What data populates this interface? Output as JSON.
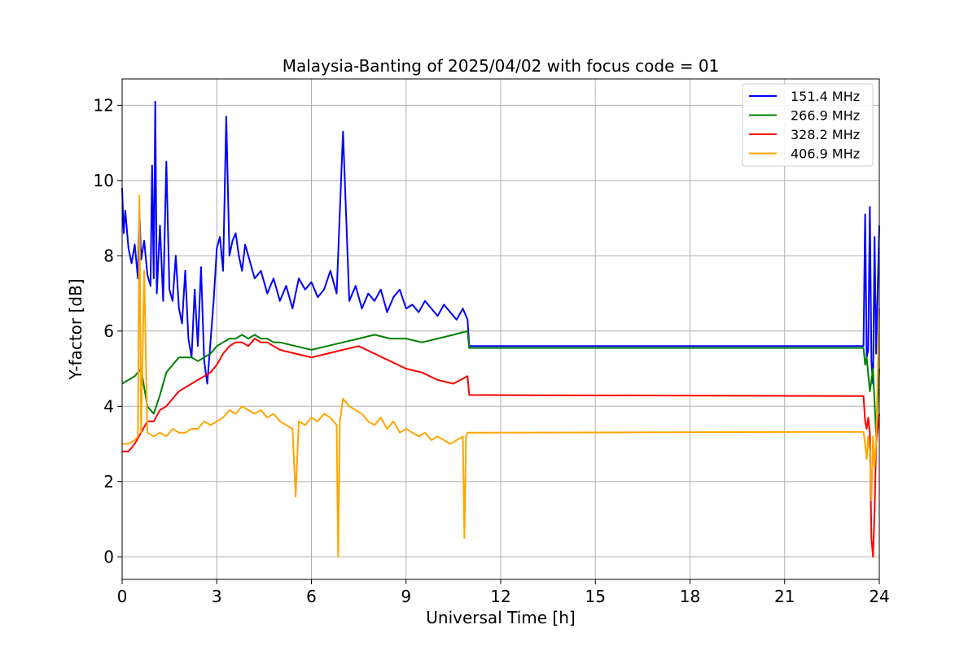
{
  "chart_data": {
    "type": "line",
    "title": "Malaysia-Banting of 2025/04/02 with focus code = 01",
    "xlabel": "Universal Time [h]",
    "ylabel": "Y-factor [dB]",
    "xlim": [
      0,
      24
    ],
    "ylim": [
      -0.6,
      12.7
    ],
    "xticks": [
      "0",
      "3",
      "6",
      "9",
      "12",
      "15",
      "18",
      "21",
      "24"
    ],
    "yticks": [
      "0",
      "2",
      "4",
      "6",
      "8",
      "10",
      "12"
    ],
    "grid": true,
    "legend_position": "top-right",
    "series": [
      {
        "name": "151.4 MHz",
        "color": "#0000ff",
        "x": [
          0,
          0.05,
          0.1,
          0.2,
          0.3,
          0.4,
          0.5,
          0.55,
          0.6,
          0.7,
          0.8,
          0.9,
          0.95,
          1.0,
          1.05,
          1.1,
          1.2,
          1.3,
          1.4,
          1.5,
          1.6,
          1.7,
          1.8,
          1.9,
          2.0,
          2.1,
          2.2,
          2.3,
          2.4,
          2.5,
          2.6,
          2.7,
          2.8,
          2.9,
          3.0,
          3.1,
          3.2,
          3.3,
          3.4,
          3.5,
          3.6,
          3.7,
          3.8,
          3.9,
          4.0,
          4.2,
          4.4,
          4.6,
          4.8,
          5.0,
          5.2,
          5.4,
          5.6,
          5.8,
          6.0,
          6.2,
          6.4,
          6.6,
          6.8,
          7.0,
          7.2,
          7.4,
          7.6,
          7.8,
          8.0,
          8.2,
          8.4,
          8.6,
          8.8,
          9.0,
          9.2,
          9.4,
          9.6,
          9.8,
          10.0,
          10.2,
          10.4,
          10.6,
          10.8,
          10.95,
          11.0,
          23.5,
          23.55,
          23.6,
          23.65,
          23.7,
          23.75,
          23.8,
          23.85,
          23.9,
          24.0
        ],
        "y": [
          9.8,
          8.6,
          9.2,
          8.2,
          7.8,
          8.3,
          7.4,
          9.2,
          7.9,
          8.4,
          7.5,
          7.2,
          10.4,
          7.4,
          12.1,
          7.0,
          8.8,
          6.8,
          10.5,
          7.1,
          6.8,
          8.0,
          6.6,
          6.2,
          7.6,
          5.8,
          5.3,
          7.1,
          5.6,
          7.7,
          5.2,
          4.6,
          5.7,
          6.8,
          8.2,
          8.5,
          7.6,
          11.7,
          8.0,
          8.4,
          8.6,
          8.0,
          7.6,
          8.3,
          8.0,
          7.4,
          7.6,
          7.0,
          7.4,
          6.8,
          7.2,
          6.6,
          7.4,
          7.1,
          7.3,
          6.9,
          7.1,
          7.6,
          7.0,
          11.3,
          6.8,
          7.2,
          6.6,
          7.0,
          6.8,
          7.1,
          6.5,
          6.9,
          7.1,
          6.6,
          6.7,
          6.5,
          6.8,
          6.6,
          6.4,
          6.7,
          6.5,
          6.3,
          6.6,
          6.3,
          5.6,
          5.6,
          9.1,
          5.3,
          5.5,
          9.3,
          5.2,
          4.6,
          8.5,
          5.4,
          8.8
        ]
      },
      {
        "name": "266.9 MHz",
        "color": "#008000",
        "x": [
          0,
          0.2,
          0.4,
          0.6,
          0.7,
          0.8,
          1.0,
          1.2,
          1.4,
          1.6,
          1.8,
          2.0,
          2.2,
          2.4,
          2.6,
          2.8,
          3.0,
          3.2,
          3.4,
          3.6,
          3.8,
          4.0,
          4.2,
          4.4,
          4.6,
          4.8,
          5.0,
          5.5,
          6.0,
          6.5,
          7.0,
          7.5,
          8.0,
          8.5,
          9.0,
          9.5,
          10.0,
          10.5,
          10.95,
          11.0,
          23.5,
          23.55,
          23.6,
          23.7,
          23.8,
          23.9,
          24.0
        ],
        "y": [
          4.6,
          4.7,
          4.8,
          5.0,
          4.5,
          4.0,
          3.8,
          4.3,
          4.9,
          5.1,
          5.3,
          5.3,
          5.3,
          5.2,
          5.3,
          5.4,
          5.6,
          5.7,
          5.8,
          5.8,
          5.9,
          5.8,
          5.9,
          5.8,
          5.8,
          5.7,
          5.7,
          5.6,
          5.5,
          5.6,
          5.7,
          5.8,
          5.9,
          5.8,
          5.8,
          5.7,
          5.8,
          5.9,
          6.0,
          5.55,
          5.55,
          5.1,
          5.3,
          4.4,
          5.0,
          3.2,
          5.0
        ]
      },
      {
        "name": "328.2 MHz",
        "color": "#ff0000",
        "x": [
          0,
          0.2,
          0.4,
          0.6,
          0.8,
          1.0,
          1.2,
          1.4,
          1.6,
          1.8,
          2.0,
          2.2,
          2.4,
          2.6,
          2.8,
          3.0,
          3.2,
          3.4,
          3.6,
          3.8,
          4.0,
          4.2,
          4.4,
          4.6,
          4.8,
          5.0,
          5.5,
          6.0,
          6.5,
          7.0,
          7.5,
          8.0,
          8.5,
          9.0,
          9.5,
          10.0,
          10.5,
          10.95,
          11.0,
          23.5,
          23.55,
          23.6,
          23.65,
          23.7,
          23.75,
          23.8,
          23.85,
          23.9,
          24.0
        ],
        "y": [
          2.8,
          2.8,
          3.0,
          3.3,
          3.6,
          3.6,
          3.9,
          4.0,
          4.2,
          4.4,
          4.5,
          4.6,
          4.7,
          4.8,
          4.9,
          5.1,
          5.4,
          5.6,
          5.7,
          5.7,
          5.6,
          5.8,
          5.7,
          5.7,
          5.6,
          5.5,
          5.4,
          5.3,
          5.4,
          5.5,
          5.6,
          5.4,
          5.2,
          5.0,
          4.9,
          4.7,
          4.6,
          4.8,
          4.3,
          4.27,
          3.6,
          3.4,
          3.7,
          3.3,
          0.5,
          0.0,
          1.2,
          3.0,
          3.8
        ]
      },
      {
        "name": "406.9 MHz",
        "color": "#ffa500",
        "x": [
          0,
          0.2,
          0.4,
          0.5,
          0.55,
          0.6,
          0.7,
          0.8,
          1.0,
          1.2,
          1.4,
          1.6,
          1.8,
          2.0,
          2.2,
          2.4,
          2.6,
          2.8,
          3.0,
          3.2,
          3.4,
          3.6,
          3.8,
          4.0,
          4.2,
          4.4,
          4.6,
          4.8,
          5.0,
          5.2,
          5.4,
          5.5,
          5.6,
          5.8,
          6.0,
          6.2,
          6.4,
          6.6,
          6.8,
          6.85,
          6.9,
          7.0,
          7.2,
          7.4,
          7.6,
          7.8,
          8.0,
          8.2,
          8.4,
          8.6,
          8.8,
          9.0,
          9.2,
          9.4,
          9.6,
          9.8,
          10.0,
          10.2,
          10.4,
          10.6,
          10.8,
          10.85,
          10.9,
          10.95,
          11.0,
          23.5,
          23.55,
          23.6,
          23.65,
          23.7,
          23.75,
          23.8,
          23.85,
          23.9,
          24.0
        ],
        "y": [
          3.0,
          3.0,
          3.1,
          3.2,
          9.6,
          3.3,
          7.6,
          3.3,
          3.2,
          3.3,
          3.2,
          3.4,
          3.3,
          3.3,
          3.4,
          3.4,
          3.6,
          3.5,
          3.6,
          3.7,
          3.9,
          3.8,
          4.0,
          3.9,
          3.8,
          3.9,
          3.7,
          3.8,
          3.6,
          3.5,
          3.4,
          1.6,
          3.6,
          3.5,
          3.7,
          3.6,
          3.8,
          3.7,
          3.5,
          0.0,
          3.6,
          4.2,
          4.0,
          3.9,
          3.8,
          3.6,
          3.5,
          3.7,
          3.4,
          3.6,
          3.3,
          3.4,
          3.3,
          3.2,
          3.3,
          3.1,
          3.2,
          3.1,
          3.0,
          3.1,
          3.2,
          0.5,
          3.2,
          3.3,
          3.3,
          3.32,
          3.0,
          2.6,
          3.2,
          2.8,
          1.5,
          3.2,
          2.4,
          3.0,
          6.6
        ]
      }
    ]
  }
}
